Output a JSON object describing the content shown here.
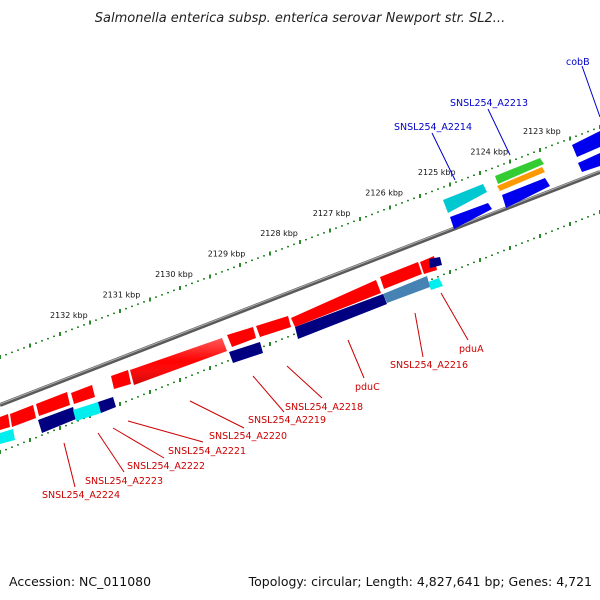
{
  "title": "Salmonella enterica subsp. enterica serovar Newport str. SL2...",
  "footer": {
    "accession": "Accession: NC_011080",
    "summary": "Topology: circular; Length: 4,827,641 bp; Genes: 4,721"
  },
  "scale": {
    "unit": "kbp",
    "ticks": [
      {
        "kbp": 2123,
        "label": "2123 kbp"
      },
      {
        "kbp": 2124,
        "label": "2124 kbp"
      },
      {
        "kbp": 2125,
        "label": "2125 kbp"
      },
      {
        "kbp": 2126,
        "label": "2126 kbp"
      },
      {
        "kbp": 2127,
        "label": "2127 kbp"
      },
      {
        "kbp": 2128,
        "label": "2128 kbp"
      },
      {
        "kbp": 2129,
        "label": "2129 kbp"
      },
      {
        "kbp": 2130,
        "label": "2130 kbp"
      },
      {
        "kbp": 2131,
        "label": "2131 kbp"
      },
      {
        "kbp": 2132,
        "label": "2132 kbp"
      }
    ]
  },
  "colors": {
    "red_gene": "#ff0000",
    "blue_gene": "#0000ff",
    "navy_gene": "#000080",
    "cyan_gene": "#00cccc",
    "green_gene": "#33cc33",
    "orange_gene": "#ff9900",
    "steel_gene": "#4682b4",
    "backbone": "#808080",
    "tick": "#2a8a2a",
    "label_red": "#cc0000",
    "label_blue": "#0000cc"
  },
  "labels": {
    "forward": [
      {
        "id": "cobB",
        "text": "cobB"
      },
      {
        "id": "A2213",
        "text": "SNSL254_A2213"
      },
      {
        "id": "A2214",
        "text": "SNSL254_A2214"
      }
    ],
    "reverse": [
      {
        "id": "pduA",
        "text": "pduA"
      },
      {
        "id": "A2216",
        "text": "SNSL254_A2216"
      },
      {
        "id": "pduC",
        "text": "pduC"
      },
      {
        "id": "A2218",
        "text": "SNSL254_A2218"
      },
      {
        "id": "A2219",
        "text": "SNSL254_A2219"
      },
      {
        "id": "A2220",
        "text": "SNSL254_A2220"
      },
      {
        "id": "A2221",
        "text": "SNSL254_A2221"
      },
      {
        "id": "A2222",
        "text": "SNSL254_A2222"
      },
      {
        "id": "A2223",
        "text": "SNSL254_A2223"
      },
      {
        "id": "A2224",
        "text": "SNSL254_A2224"
      }
    ]
  }
}
